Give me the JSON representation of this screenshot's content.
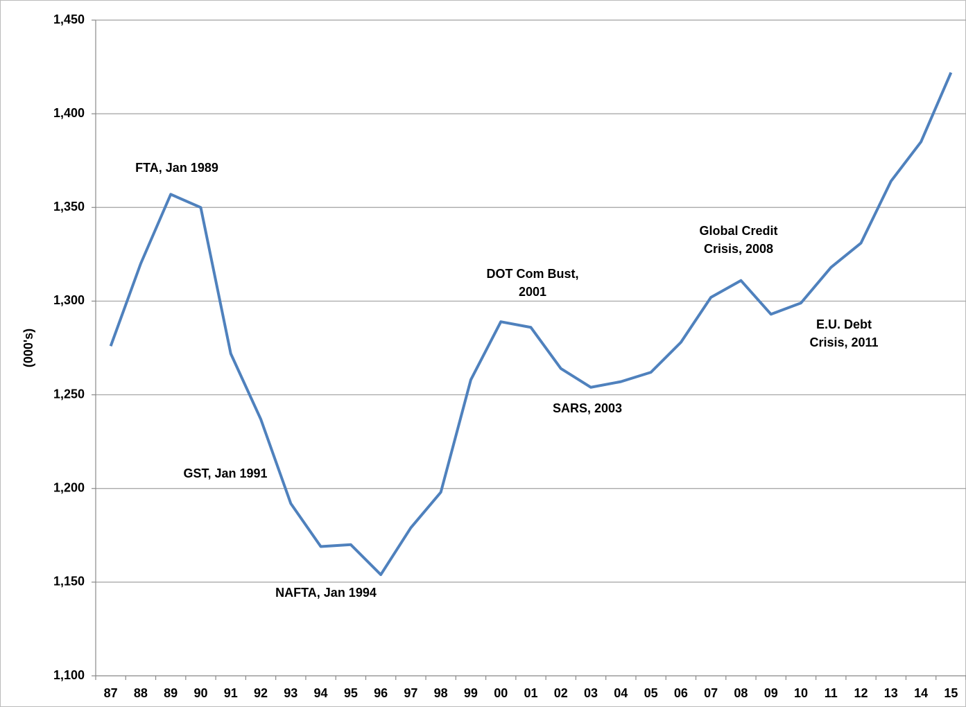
{
  "chart_data": {
    "type": "line",
    "y_axis_label": "(000's)",
    "categories": [
      "87",
      "88",
      "89",
      "90",
      "91",
      "92",
      "93",
      "94",
      "95",
      "96",
      "97",
      "98",
      "99",
      "00",
      "01",
      "02",
      "03",
      "04",
      "05",
      "06",
      "07",
      "08",
      "09",
      "10",
      "11",
      "12",
      "13",
      "14",
      "15"
    ],
    "series": [
      {
        "color": "#4f81bd",
        "values": [
          1276,
          1320,
          1357,
          1350,
          1272,
          1237,
          1192,
          1169,
          1170,
          1154,
          1179,
          1198,
          1258,
          1289,
          1286,
          1264,
          1254,
          1257,
          1262,
          1278,
          1302,
          1311,
          1293,
          1299,
          1318,
          1331,
          1364,
          1385,
          1422
        ]
      }
    ],
    "ylim": [
      1100,
      1450
    ],
    "yticks": [
      {
        "value": 1100,
        "label": "1,100"
      },
      {
        "value": 1150,
        "label": "1,150"
      },
      {
        "value": 1200,
        "label": "1,200"
      },
      {
        "value": 1250,
        "label": "1,250"
      },
      {
        "value": 1300,
        "label": "1,300"
      },
      {
        "value": 1350,
        "label": "1,350"
      },
      {
        "value": 1400,
        "label": "1,400"
      },
      {
        "value": 1450,
        "label": "1,450"
      }
    ],
    "grid": true,
    "annotations": [
      [
        "FTA, Jan 1989"
      ],
      [
        "GST, Jan 1991"
      ],
      [
        "NAFTA, Jan 1994"
      ],
      [
        "DOT Com Bust,",
        "2001"
      ],
      [
        "SARS, 2003"
      ],
      [
        "Global Credit",
        "Crisis, 2008"
      ],
      [
        "E.U. Debt",
        "Crisis, 2011"
      ]
    ]
  }
}
